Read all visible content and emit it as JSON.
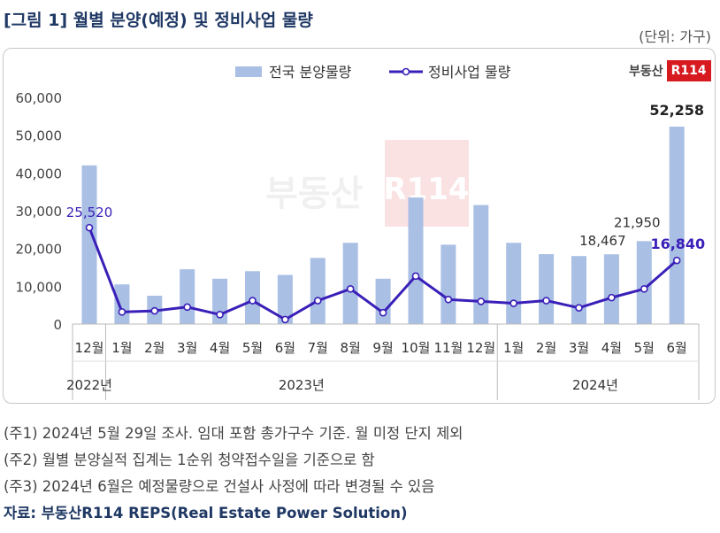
{
  "header": {
    "title": "[그림 1] 월별 분양(예정) 및 정비사업 물량",
    "unit": "(단위: 가구)"
  },
  "brand": {
    "logo_text": "부동산",
    "logo_box": "R114",
    "watermark_text": "부동산",
    "watermark_box": "R114"
  },
  "notes": [
    "(주1) 2024년 5월 29일 조사. 임대 포함 총가구수 기준. 월 미정 단지 제외",
    "(주2) 월별 분양실적 집계는 1순위 청약접수일을 기준으로 함",
    "(주3) 2024년 6월은 예정물량으로 건설사 사정에 따라 변경될 수 있음"
  ],
  "source": "자료: 부동산R114 REPS(Real Estate Power Solution)",
  "colors": {
    "bar": "#a9bfe4",
    "line": "#3a1fb8",
    "title": "#1f3864"
  },
  "chart_data": {
    "type": "bar+line",
    "categories": [
      "12월",
      "1월",
      "2월",
      "3월",
      "4월",
      "5월",
      "6월",
      "7월",
      "8월",
      "9월",
      "10월",
      "11월",
      "12월",
      "1월",
      "2월",
      "3월",
      "4월",
      "5월",
      "6월"
    ],
    "year_groups": [
      {
        "label": "2022년",
        "start": 0,
        "end": 0
      },
      {
        "label": "2023년",
        "start": 1,
        "end": 12
      },
      {
        "label": "2024년",
        "start": 13,
        "end": 18
      }
    ],
    "ylim": [
      0,
      60000
    ],
    "yticks": [
      0,
      10000,
      20000,
      30000,
      40000,
      50000,
      60000
    ],
    "ytick_labels": [
      "0",
      "10,000",
      "20,000",
      "30,000",
      "40,000",
      "50,000",
      "60,000"
    ],
    "series": [
      {
        "name": "전국 분양물량",
        "kind": "bar",
        "values": [
          42000,
          10500,
          7500,
          14500,
          12000,
          14000,
          13000,
          17500,
          21500,
          12000,
          33500,
          21000,
          31500,
          21500,
          18500,
          18000,
          18467,
          21950,
          52258
        ]
      },
      {
        "name": "정비사업 물량",
        "kind": "line",
        "values": [
          25520,
          3200,
          3500,
          4500,
          2500,
          6200,
          1200,
          6200,
          9300,
          3000,
          12700,
          6500,
          6000,
          5500,
          6200,
          4300,
          7000,
          9300,
          16840
        ]
      }
    ],
    "data_labels": [
      {
        "series": 1,
        "index": 0,
        "text": "25,520",
        "position": "above",
        "style": "line"
      },
      {
        "series": 0,
        "index": 16,
        "text": "18,467",
        "position": "above",
        "style": "plain"
      },
      {
        "series": 0,
        "index": 17,
        "text": "21,950",
        "position": "above",
        "style": "plain"
      },
      {
        "series": 0,
        "index": 18,
        "text": "52,258",
        "position": "above",
        "style": "bold"
      },
      {
        "series": 1,
        "index": 18,
        "text": "16,840",
        "position": "left",
        "style": "line-bold"
      }
    ],
    "legend_position": "top-center"
  }
}
